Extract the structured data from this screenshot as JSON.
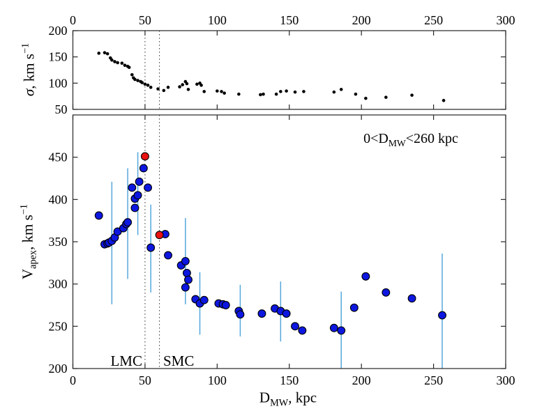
{
  "figure": {
    "background": "#ffffff",
    "labels": {
      "y_top": {
        "sym": "σ",
        "rest": ", km s",
        "sup": "−1"
      },
      "y_bottom": {
        "sym": "V",
        "sub": "apex",
        "rest": ", km s",
        "sup": "−1"
      },
      "x_axis": {
        "sym": "D",
        "sub": "MW",
        "rest": ", kpc"
      },
      "annotation": {
        "pre": "0<D",
        "sub": "MW",
        "post": "<260 kpc"
      },
      "lmc": "LMC",
      "smc": "SMC"
    },
    "colors": {
      "marker_blue": "#0d17e0",
      "marker_red": "#ea1111",
      "marker_edge": "#000000",
      "errorbar": "#55a7db",
      "dots": "#000000",
      "axis": "#262626",
      "refline": "#3c3c3c",
      "text": "#000000"
    }
  },
  "chart_data": [
    {
      "type": "scatter",
      "panel": "top",
      "ylabel": "σ, km s^-1",
      "xlabel": "D_MW, kpc (shared, labels on top axis)",
      "xlim": [
        0,
        300
      ],
      "ylim": [
        50,
        200
      ],
      "xticks": [
        0,
        50,
        100,
        150,
        200,
        250,
        300
      ],
      "yticks": [
        50,
        100,
        150,
        200
      ],
      "x_labels_side": "top",
      "grid": false,
      "reference_lines_x": [
        50,
        60
      ],
      "points": [
        [
          18,
          157
        ],
        [
          22,
          158
        ],
        [
          24,
          156
        ],
        [
          26,
          148
        ],
        [
          27,
          144
        ],
        [
          29,
          141
        ],
        [
          31,
          139
        ],
        [
          34,
          138
        ],
        [
          36,
          134
        ],
        [
          38,
          132
        ],
        [
          39,
          130
        ],
        [
          41,
          116
        ],
        [
          42,
          110
        ],
        [
          43,
          107
        ],
        [
          45,
          105
        ],
        [
          47,
          103
        ],
        [
          48,
          101
        ],
        [
          50,
          98
        ],
        [
          52,
          96
        ],
        [
          54,
          92
        ],
        [
          59,
          89
        ],
        [
          63,
          86
        ],
        [
          66,
          92
        ],
        [
          74,
          93
        ],
        [
          76,
          97
        ],
        [
          78,
          103
        ],
        [
          79,
          99
        ],
        [
          80,
          88
        ],
        [
          86,
          98
        ],
        [
          88,
          100
        ],
        [
          89,
          96
        ],
        [
          91,
          84
        ],
        [
          100,
          85
        ],
        [
          103,
          84
        ],
        [
          105,
          81
        ],
        [
          115,
          79
        ],
        [
          130,
          78
        ],
        [
          132,
          79
        ],
        [
          141,
          79
        ],
        [
          144,
          84
        ],
        [
          148,
          85
        ],
        [
          154,
          83
        ],
        [
          160,
          84
        ],
        [
          181,
          83
        ],
        [
          186,
          88
        ],
        [
          196,
          79
        ],
        [
          203,
          71
        ],
        [
          217,
          73
        ],
        [
          235,
          77
        ],
        [
          257,
          67
        ]
      ]
    },
    {
      "type": "scatter",
      "panel": "bottom",
      "ylabel": "V_apex, km s^-1",
      "xlabel": "D_MW, kpc",
      "annotation": "0<D_MW<260 kpc",
      "xlim": [
        0,
        300
      ],
      "ylim": [
        200,
        500
      ],
      "xticks": [
        0,
        50,
        100,
        150,
        200,
        250,
        300
      ],
      "yticks": [
        200,
        250,
        300,
        350,
        400,
        450
      ],
      "x_labels_side": "bottom",
      "grid": false,
      "reference_lines_x": [
        50,
        60
      ],
      "reference_line_labels": [
        "LMC",
        "SMC"
      ],
      "series": [
        {
          "name": "v_apex_sample",
          "color": "blue",
          "points": [
            [
              18,
              381
            ],
            [
              22,
              347
            ],
            [
              24,
              348
            ],
            [
              25,
              349
            ],
            [
              27,
              351
            ],
            [
              29,
              355
            ],
            [
              31,
              362
            ],
            [
              35,
              366
            ],
            [
              37,
              371
            ],
            [
              38,
              373
            ],
            [
              41,
              414
            ],
            [
              43,
              390
            ],
            [
              43,
              401
            ],
            [
              45,
              405
            ],
            [
              46,
              421
            ],
            [
              49,
              437
            ],
            [
              52,
              414
            ],
            [
              54,
              343
            ],
            [
              64,
              359
            ],
            [
              66,
              334
            ],
            [
              75,
              322
            ],
            [
              78,
              327
            ],
            [
              79,
              313
            ],
            [
              80,
              305
            ],
            [
              78,
              296
            ],
            [
              85,
              282
            ],
            [
              88,
              277
            ],
            [
              91,
              281
            ],
            [
              101,
              277
            ],
            [
              104,
              276
            ],
            [
              106,
              275
            ],
            [
              115,
              268
            ],
            [
              116,
              264
            ],
            [
              131,
              265
            ],
            [
              140,
              271
            ],
            [
              144,
              268
            ],
            [
              148,
              265
            ],
            [
              154,
              250
            ],
            [
              159,
              245
            ],
            [
              181,
              248
            ],
            [
              186,
              245
            ],
            [
              195,
              272
            ],
            [
              203,
              309
            ],
            [
              217,
              290
            ],
            [
              235,
              283
            ],
            [
              256,
              263
            ]
          ]
        },
        {
          "name": "lmc_smc_highlight",
          "color": "red",
          "points": [
            [
              50,
              451
            ],
            [
              60,
              358
            ]
          ]
        }
      ],
      "error_bars": [
        {
          "x": 27,
          "lo": 276,
          "hi": 421
        },
        {
          "x": 38,
          "lo": 306,
          "hi": 437
        },
        {
          "x": 45,
          "lo": 358,
          "hi": 456
        },
        {
          "x": 54,
          "lo": 290,
          "hi": 394
        },
        {
          "x": 78,
          "lo": 276,
          "hi": 378
        },
        {
          "x": 88,
          "lo": 240,
          "hi": 314
        },
        {
          "x": 116,
          "lo": 238,
          "hi": 299
        },
        {
          "x": 144,
          "lo": 232,
          "hi": 303
        },
        {
          "x": 186,
          "lo": 200,
          "hi": 291
        },
        {
          "x": 256,
          "lo": 200,
          "hi": 336
        }
      ]
    }
  ]
}
